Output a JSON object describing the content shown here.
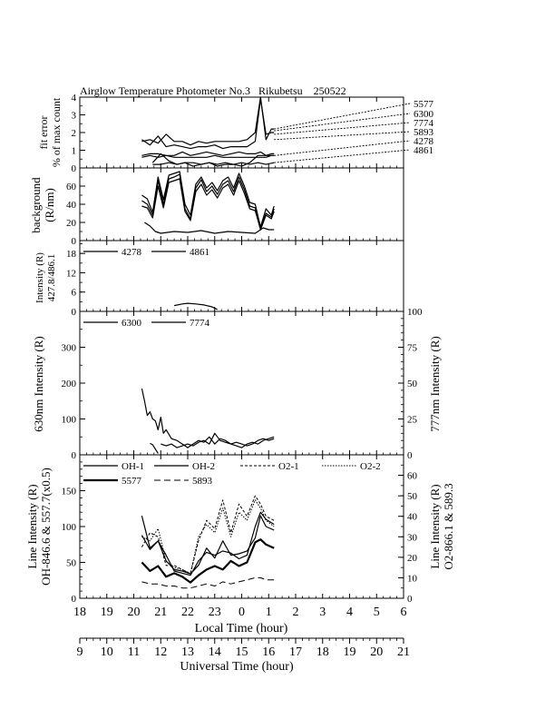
{
  "title": "Airglow Temperature Photometer No.3   Rikubetsu    250522",
  "colors": {
    "ink": "#000000",
    "background": "#ffffff"
  },
  "axes": {
    "local_time_label": "Local Time (hour)",
    "universal_time_label": "Universal Time (hour)",
    "local_ticks": [
      "18",
      "19",
      "20",
      "21",
      "22",
      "23",
      "0",
      "1",
      "2",
      "3",
      "4",
      "5",
      "6"
    ],
    "universal_ticks": [
      "9",
      "10",
      "11",
      "12",
      "13",
      "14",
      "15",
      "16",
      "17",
      "18",
      "19",
      "20",
      "21"
    ]
  },
  "chart_data": [
    {
      "id": "fit_error",
      "type": "line",
      "ylabel": [
        "fit error",
        "% of max count"
      ],
      "ylim": [
        0,
        4
      ],
      "yticks": [
        "0",
        "1",
        "2",
        "3",
        "4"
      ],
      "legend_labels": [
        "5577",
        "6300",
        "7774",
        "5893",
        "4278",
        "4861"
      ],
      "series": [
        {
          "name": "5577",
          "style": "solid",
          "x": [
            20.3,
            20.6,
            20.9,
            21.2,
            21.5,
            21.8,
            22.1,
            22.4,
            22.7,
            23.0,
            23.3,
            23.6,
            23.9,
            24.2,
            24.5,
            24.7,
            24.9,
            25.1,
            25.2
          ],
          "y": [
            1.5,
            1.6,
            1.4,
            1.9,
            1.5,
            1.5,
            1.3,
            1.5,
            1.4,
            1.5,
            1.5,
            1.5,
            1.5,
            1.6,
            2.0,
            4.0,
            1.6,
            2.2,
            2.2
          ]
        },
        {
          "name": "6300",
          "style": "solid",
          "x": [
            20.3,
            20.6,
            20.9,
            21.2,
            21.5,
            21.8,
            22.1,
            22.4,
            22.7,
            23.0,
            23.3,
            23.6,
            23.9,
            24.2,
            24.5,
            24.7,
            24.9,
            25.1,
            25.2
          ],
          "y": [
            1.6,
            1.3,
            1.8,
            1.2,
            1.3,
            1.2,
            1.1,
            1.2,
            1.2,
            1.3,
            1.1,
            1.2,
            1.2,
            1.2,
            1.5,
            3.9,
            1.9,
            2.0,
            2.0
          ]
        },
        {
          "name": "7774",
          "style": "solid",
          "x": [
            20.3,
            20.6,
            20.9,
            21.2,
            21.5,
            21.8,
            22.1,
            22.4,
            22.7,
            23.0,
            23.3,
            23.6,
            23.9,
            24.2,
            24.5,
            24.7,
            24.9,
            25.1,
            25.2
          ],
          "y": [
            0.7,
            0.8,
            0.8,
            0.7,
            0.7,
            0.9,
            0.7,
            0.8,
            0.9,
            0.8,
            0.7,
            0.8,
            0.9,
            0.8,
            0.8,
            0.9,
            0.7,
            0.8,
            0.8
          ]
        },
        {
          "name": "5893",
          "style": "solid",
          "x": [
            20.3,
            20.6,
            20.9,
            21.2,
            21.5,
            21.8,
            22.1,
            22.4,
            22.7,
            23.0,
            23.3,
            23.6,
            23.9,
            24.2,
            24.5,
            24.7,
            24.9,
            25.1,
            25.2
          ],
          "y": [
            0.6,
            0.7,
            0.6,
            0.7,
            0.6,
            0.6,
            0.6,
            0.6,
            0.6,
            0.7,
            0.6,
            0.6,
            0.6,
            0.6,
            0.6,
            0.6,
            0.6,
            0.7,
            0.7
          ]
        },
        {
          "name": "4278",
          "style": "solid",
          "x": [
            20.7,
            21.0,
            21.3,
            21.6,
            21.9,
            22.2,
            22.5,
            22.8,
            23.1,
            23.4,
            23.7,
            24.0,
            24.3,
            24.6,
            24.9,
            25.2
          ],
          "y": [
            0.3,
            0.8,
            0.4,
            0.2,
            0.3,
            0.1,
            0.2,
            0.3,
            0.1,
            0.2,
            0.2,
            0.1,
            0.3,
            0.7,
            0.7,
            0.7
          ]
        },
        {
          "name": "4861",
          "style": "solid",
          "x": [
            20.7,
            21.0,
            21.3,
            21.6,
            21.9,
            22.2,
            22.5,
            22.8,
            23.1,
            23.4,
            23.7,
            24.0,
            24.3,
            24.6,
            24.9,
            25.2
          ],
          "y": [
            0.2,
            0.2,
            0.3,
            0.2,
            0.3,
            0.3,
            0.2,
            0.3,
            0.2,
            0.3,
            0.2,
            0.3,
            0.2,
            0.3,
            0.2,
            0.3
          ]
        }
      ],
      "leader_lines": [
        {
          "label": "5577",
          "y_end": 2.2
        },
        {
          "label": "6300",
          "y_end": 2.1
        },
        {
          "label": "7774",
          "y_end": 1.9
        },
        {
          "label": "5893",
          "y_end": 1.6
        },
        {
          "label": "4278",
          "y_end": 0.7
        },
        {
          "label": "4861",
          "y_end": 0.3
        }
      ]
    },
    {
      "id": "background",
      "type": "line",
      "ylabel": [
        "background",
        "(R/nm)"
      ],
      "ylim": [
        0,
        80
      ],
      "yticks": [
        "0",
        "20",
        "40",
        "60"
      ],
      "series": [
        {
          "name": "b1",
          "style": "solid",
          "x": [
            20.3,
            20.5,
            20.7,
            20.9,
            21.1,
            21.3,
            21.5,
            21.7,
            21.9,
            22.1,
            22.3,
            22.5,
            22.7,
            22.9,
            23.1,
            23.3,
            23.5,
            23.7,
            23.9,
            24.1,
            24.3,
            24.5,
            24.7,
            24.9,
            25.1,
            25.2
          ],
          "y": [
            50,
            46,
            31,
            70,
            45,
            72,
            74,
            76,
            40,
            28,
            62,
            70,
            58,
            64,
            55,
            66,
            70,
            58,
            74,
            60,
            42,
            40,
            15,
            35,
            28,
            38
          ]
        },
        {
          "name": "b2",
          "style": "solid",
          "x": [
            20.3,
            20.5,
            20.7,
            20.9,
            21.1,
            21.3,
            21.5,
            21.7,
            21.9,
            22.1,
            22.3,
            22.5,
            22.7,
            22.9,
            23.1,
            23.3,
            23.5,
            23.7,
            23.9,
            24.1,
            24.3,
            24.5,
            24.7,
            24.9,
            25.1,
            25.2
          ],
          "y": [
            44,
            40,
            28,
            66,
            40,
            68,
            70,
            73,
            35,
            24,
            58,
            67,
            54,
            60,
            51,
            62,
            66,
            54,
            70,
            56,
            38,
            36,
            14,
            30,
            26,
            35
          ]
        },
        {
          "name": "b3",
          "style": "solid",
          "x": [
            20.3,
            20.5,
            20.7,
            20.9,
            21.1,
            21.3,
            21.5,
            21.7,
            21.9,
            22.1,
            22.3,
            22.5,
            22.7,
            22.9,
            23.1,
            23.3,
            23.5,
            23.7,
            23.9,
            24.1,
            24.3,
            24.5,
            24.7,
            24.9,
            25.1,
            25.2
          ],
          "y": [
            38,
            36,
            25,
            60,
            36,
            64,
            66,
            68,
            32,
            22,
            54,
            62,
            50,
            56,
            47,
            58,
            62,
            50,
            66,
            52,
            35,
            33,
            12,
            28,
            24,
            32
          ]
        },
        {
          "name": "b4",
          "style": "solid",
          "x": [
            20.4,
            20.6,
            20.8,
            21.0,
            21.5,
            22.0,
            22.5,
            23.0,
            23.5,
            24.0,
            24.5,
            24.8,
            25.0,
            25.2
          ],
          "y": [
            20,
            16,
            10,
            8,
            10,
            9,
            11,
            8,
            10,
            9,
            8,
            14,
            12,
            12
          ]
        }
      ]
    },
    {
      "id": "intensity_ratio",
      "type": "line",
      "ylabel": [
        "Intensity (R)",
        "427.8/486.1"
      ],
      "ylim": [
        0,
        22
      ],
      "yticks": [
        "0",
        "6",
        "12",
        "18"
      ],
      "legend": [
        "4278",
        "4861"
      ],
      "series": [
        {
          "name": "ratio",
          "style": "solid",
          "x": [
            21.5,
            21.8,
            22.0,
            22.3,
            22.6,
            22.9,
            23.1
          ],
          "y": [
            1.8,
            2.3,
            2.5,
            2.3,
            2.0,
            1.4,
            0.6
          ]
        }
      ]
    },
    {
      "id": "oxygen_red",
      "type": "line",
      "ylabel_left": "630nm Intensity (R)",
      "ylabel_right": "777nm Intensity (R)",
      "ylim_left": [
        0,
        400
      ],
      "ylim_right": [
        0,
        100
      ],
      "yticks_left": [
        "0",
        "100",
        "200",
        "300"
      ],
      "yticks_right": [
        "0",
        "25",
        "50",
        "75",
        "100"
      ],
      "legend": [
        "6300",
        "7774"
      ],
      "series": [
        {
          "name": "6300",
          "axis": "left",
          "style": "solid",
          "x": [
            20.3,
            20.4,
            20.5,
            20.6,
            20.7,
            20.8,
            20.9,
            21.0,
            21.1,
            21.2,
            21.4,
            21.6,
            21.8,
            22.0,
            22.2,
            22.4,
            22.6,
            22.8,
            23.0,
            23.2,
            23.4,
            23.6,
            23.8,
            24.0,
            24.2,
            24.4,
            24.6,
            24.8,
            25.0,
            25.2
          ],
          "y": [
            185,
            150,
            110,
            120,
            100,
            95,
            70,
            105,
            60,
            70,
            45,
            40,
            30,
            20,
            30,
            40,
            35,
            50,
            30,
            45,
            40,
            30,
            25,
            20,
            30,
            35,
            30,
            40,
            45,
            50
          ]
        },
        {
          "name": "6300b",
          "axis": "left",
          "style": "solid",
          "x": [
            21.0,
            21.2,
            21.4,
            21.6,
            21.8,
            22.0,
            22.2,
            22.4,
            22.6,
            22.8,
            23.0,
            23.2,
            23.4,
            23.6,
            23.8,
            24.0,
            24.2,
            24.4,
            24.6,
            24.8,
            25.0,
            25.2
          ],
          "y": [
            30,
            25,
            30,
            20,
            25,
            30,
            25,
            35,
            40,
            30,
            60,
            40,
            35,
            30,
            35,
            30,
            25,
            30,
            40,
            45,
            40,
            45
          ]
        },
        {
          "name": "7774",
          "axis": "right",
          "style": "solid",
          "x": [
            20.6,
            20.7,
            20.8,
            20.9
          ],
          "y": [
            8,
            7,
            4,
            1
          ]
        }
      ]
    },
    {
      "id": "line_intensity",
      "type": "line",
      "ylabel_left": [
        "Line Intensity (R)",
        "OH-846.6 & 557.7(x0.5)"
      ],
      "ylabel_right": [
        "Line Intensity (R)",
        "O2-866.1 & 589.3"
      ],
      "ylim_left": [
        0,
        200
      ],
      "ylim_right": [
        0,
        70
      ],
      "yticks_left": [
        "0",
        "50",
        "100",
        "150"
      ],
      "yticks_right": [
        "0",
        "10",
        "20",
        "30",
        "40",
        "50",
        "60"
      ],
      "legend": [
        "OH-1",
        "OH-2",
        "O2-1",
        "O2-2",
        "5577",
        "5893"
      ],
      "series": [
        {
          "name": "OH-1",
          "axis": "left",
          "style": "solid",
          "x": [
            20.3,
            20.6,
            20.9,
            21.2,
            21.5,
            21.8,
            22.1,
            22.4,
            22.7,
            23.0,
            23.3,
            23.6,
            23.9,
            24.2,
            24.5,
            24.7,
            24.9,
            25.2
          ],
          "y": [
            115,
            70,
            80,
            60,
            38,
            35,
            32,
            52,
            64,
            60,
            66,
            63,
            55,
            60,
            100,
            120,
            110,
            103
          ]
        },
        {
          "name": "OH-2",
          "axis": "left",
          "style": "solid",
          "x": [
            20.3,
            20.6,
            20.9,
            21.2,
            21.5,
            21.8,
            22.1,
            22.4,
            22.7,
            23.0,
            23.3,
            23.6,
            23.9,
            24.2,
            24.5,
            24.7,
            24.9,
            25.2
          ],
          "y": [
            88,
            68,
            80,
            52,
            40,
            38,
            34,
            46,
            70,
            56,
            80,
            60,
            62,
            66,
            84,
            115,
            100,
            95
          ]
        },
        {
          "name": "O2-1",
          "axis": "right",
          "style": "dashed",
          "x": [
            20.3,
            20.6,
            20.9,
            21.2,
            21.5,
            21.8,
            22.1,
            22.4,
            22.7,
            23.0,
            23.3,
            23.6,
            23.9,
            24.2,
            24.5,
            24.7,
            24.9,
            25.2
          ],
          "y": [
            25,
            32,
            30,
            16,
            16,
            14,
            12,
            28,
            38,
            34,
            48,
            32,
            46,
            40,
            50,
            46,
            40,
            38
          ]
        },
        {
          "name": "O2-2",
          "axis": "right",
          "style": "dotted",
          "x": [
            20.3,
            20.6,
            20.9,
            21.2,
            21.5,
            21.8,
            22.1,
            22.4,
            22.7,
            23.0,
            23.3,
            23.6,
            23.9,
            24.2,
            24.5,
            24.7,
            24.9,
            25.2
          ],
          "y": [
            30,
            28,
            34,
            18,
            15,
            14,
            12,
            30,
            36,
            32,
            44,
            30,
            42,
            38,
            48,
            44,
            38,
            35
          ]
        },
        {
          "name": "5577",
          "axis": "left",
          "style": "bold",
          "x": [
            20.3,
            20.6,
            20.9,
            21.2,
            21.5,
            21.8,
            22.1,
            22.4,
            22.7,
            23.0,
            23.3,
            23.6,
            23.9,
            24.2,
            24.5,
            24.7,
            24.9,
            25.2
          ],
          "y": [
            50,
            38,
            45,
            30,
            35,
            30,
            22,
            32,
            40,
            45,
            40,
            52,
            45,
            50,
            78,
            82,
            75,
            70
          ]
        },
        {
          "name": "5893",
          "axis": "right",
          "style": "longdash",
          "x": [
            20.3,
            20.6,
            20.9,
            21.2,
            21.5,
            21.8,
            22.1,
            22.4,
            22.7,
            23.0,
            23.3,
            23.6,
            23.9,
            24.2,
            24.5,
            24.7,
            24.9,
            25.2
          ],
          "y": [
            8,
            7,
            7,
            6,
            6,
            5,
            5,
            6,
            7,
            6,
            8,
            7,
            8,
            9,
            10,
            10,
            9,
            9
          ]
        }
      ]
    }
  ]
}
